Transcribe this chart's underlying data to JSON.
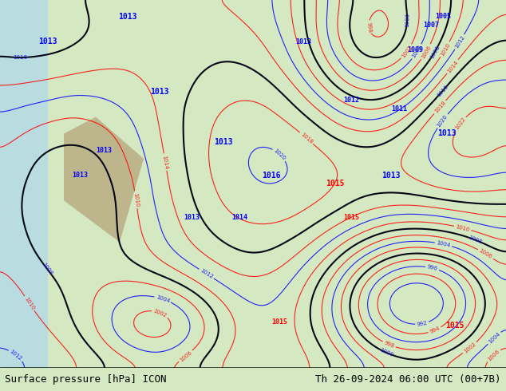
{
  "title_left": "Surface pressure [hPa] ICON",
  "title_right": "Th 26-09-2024 06:00 UTC (00+7B)",
  "bg_color": "#d4e8c2",
  "text_color": "#000000",
  "footer_bg": "#ffffff",
  "fig_width": 6.34,
  "fig_height": 4.9,
  "dpi": 100
}
